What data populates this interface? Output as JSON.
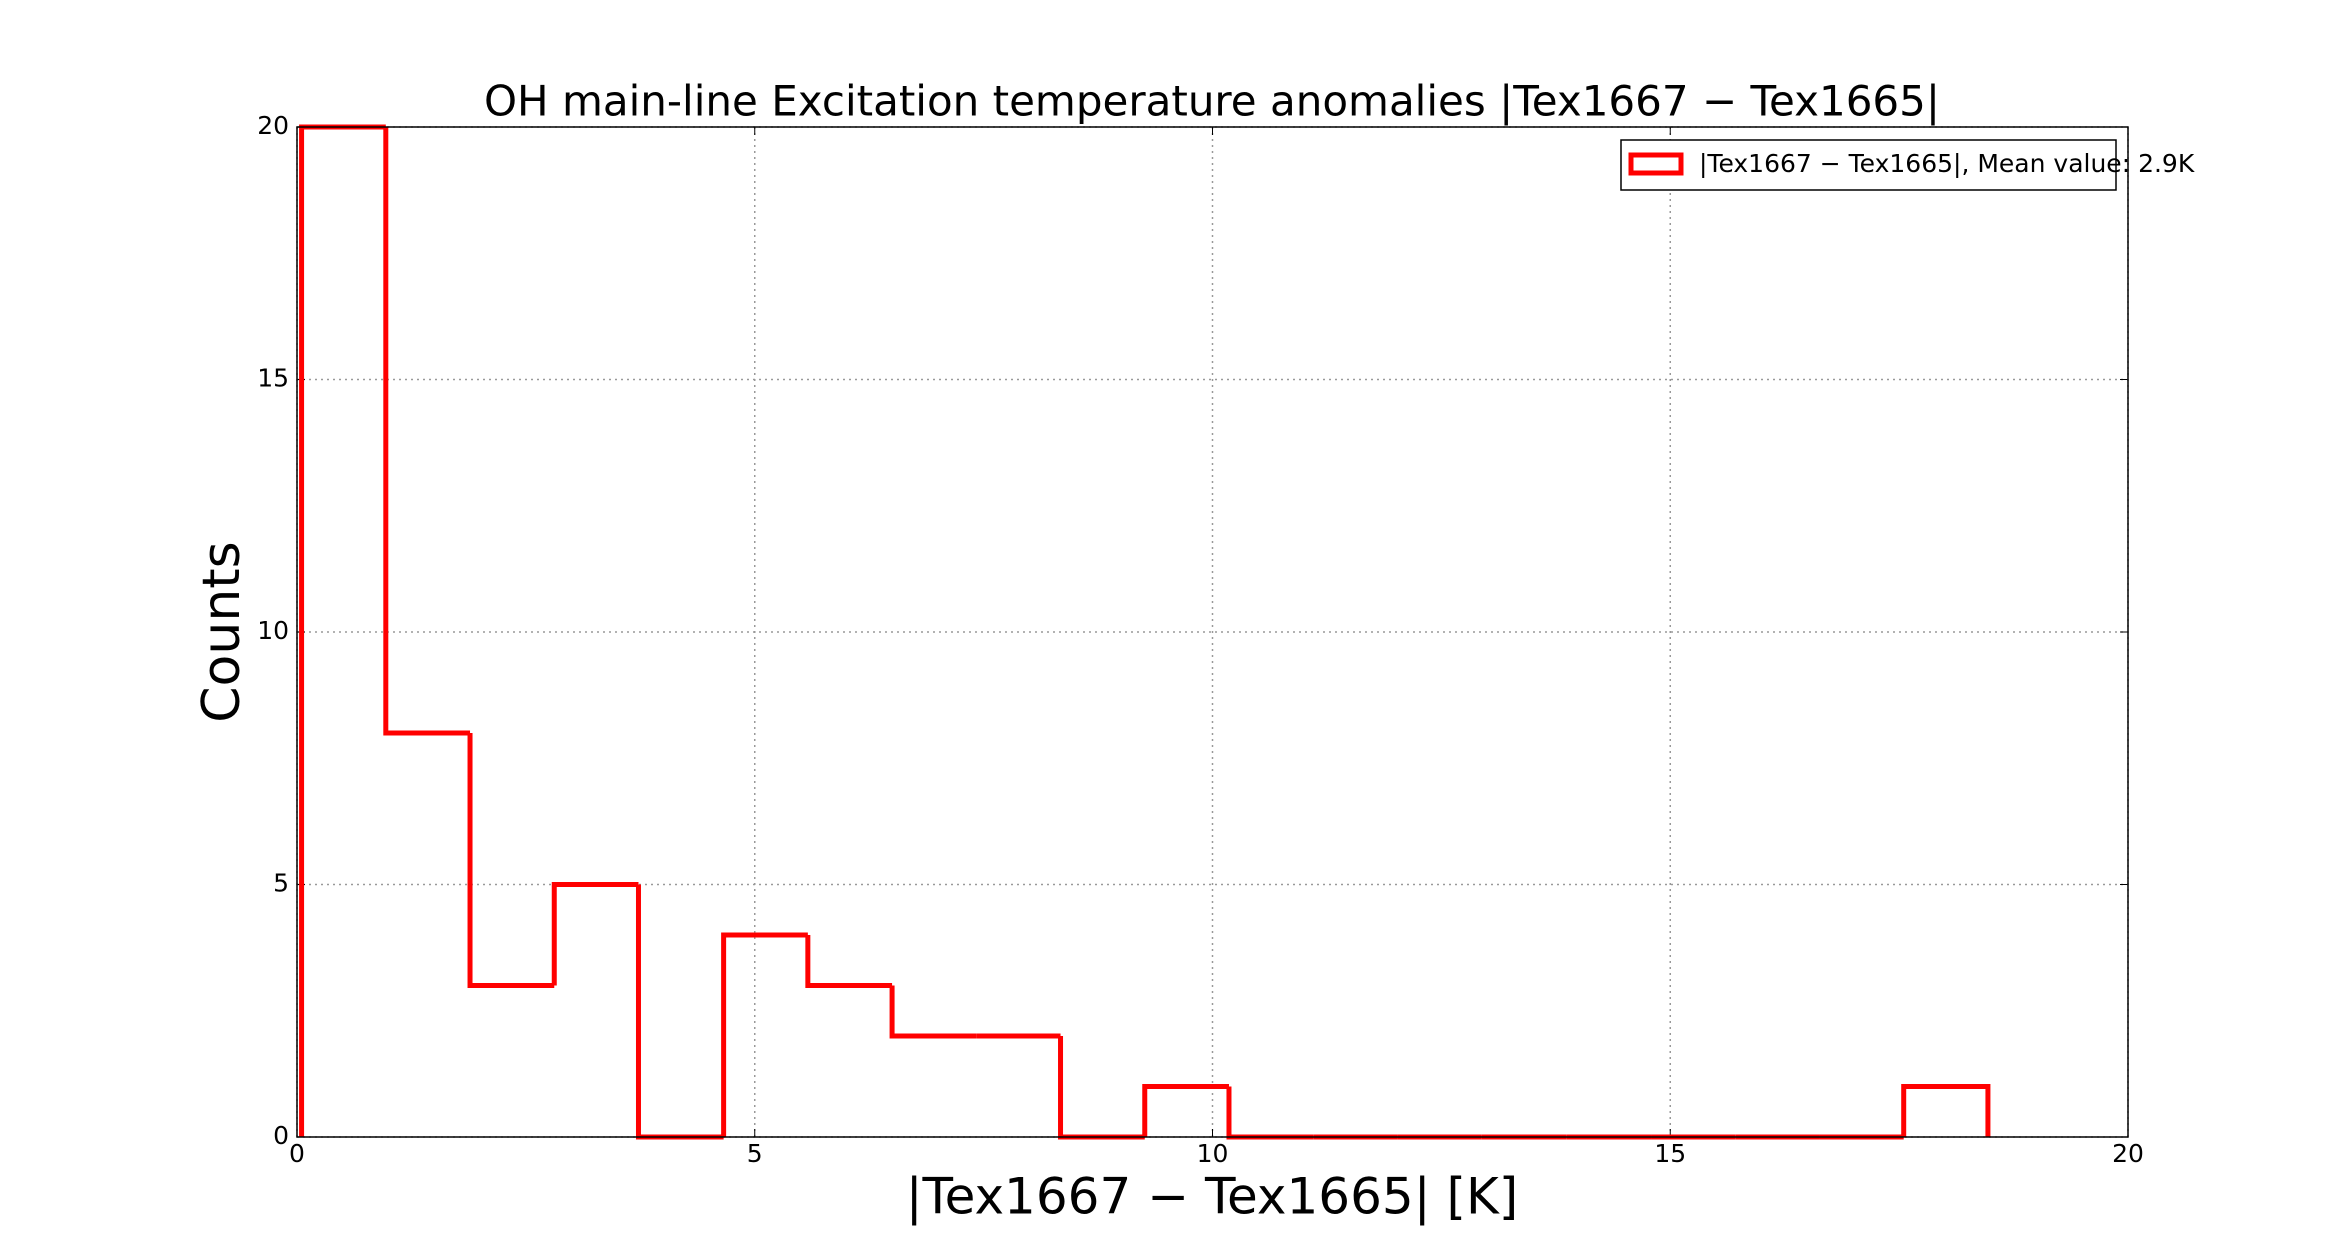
{
  "chart_data": {
    "type": "histogram",
    "title": "OH main-line Excitation temperature anomalies |Tex1667 − Tex1665|",
    "x_label": "|Tex1667 − Tex1665| [K]",
    "y_label": "Counts",
    "bins": [
      0.05,
      0.97,
      1.89,
      2.81,
      3.73,
      4.66,
      5.58,
      6.5,
      7.42,
      8.34,
      9.26,
      10.18,
      11.1,
      12.02,
      12.94,
      13.87,
      14.79,
      15.71,
      16.63,
      17.55,
      18.47
    ],
    "series": [
      {
        "name": "|Tex1667 − Tex1665|, Mean value: 2.9K",
        "color": "#ff0000",
        "values": [
          20,
          8,
          3,
          5,
          0,
          4,
          3,
          2,
          2,
          0,
          1,
          0,
          0,
          0,
          0,
          0,
          0,
          0,
          0,
          1
        ]
      }
    ],
    "xlim": [
      0,
      20
    ],
    "xticks": [
      0,
      5,
      10,
      15,
      20
    ],
    "ylim": [
      0,
      20
    ],
    "yticks": [
      0,
      5,
      10,
      15,
      20
    ],
    "grid": true,
    "legend": "upper right"
  }
}
